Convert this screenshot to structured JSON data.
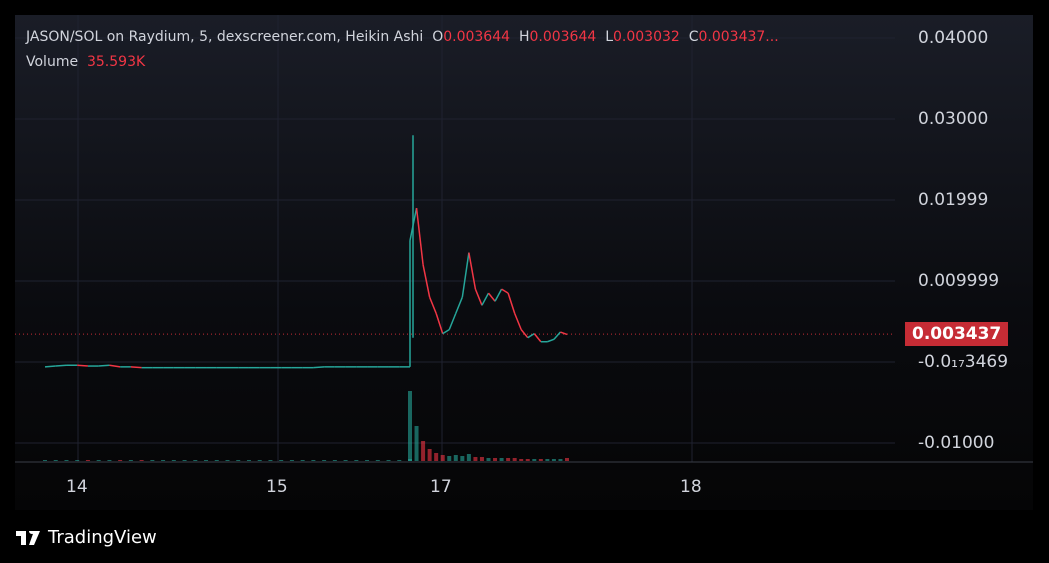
{
  "legend": {
    "title": "JASON/SOL on Raydium, 5, dexscreener.com, Heikin Ashi",
    "o_label": "O",
    "o": "0.003644",
    "h_label": "H",
    "h": "0.003644",
    "l_label": "L",
    "l": "0.003032",
    "c_label": "C",
    "c": "0.003437...",
    "volume_label": "Volume",
    "volume": "35.593K"
  },
  "price_axis": {
    "ticks": [
      "0.04000",
      "0.03000",
      "0.01999",
      "0.009999",
      "-0.01000"
    ],
    "current_price": "0.003437",
    "crosshair_label": "-0.0₁₇3469"
  },
  "time_axis": {
    "ticks": [
      "14",
      "15",
      "17",
      "18"
    ]
  },
  "brand": "TradingView",
  "colors": {
    "up": "#26a69a",
    "down": "#f23645",
    "price_badge": "#c62c35"
  },
  "chart_data": {
    "type": "candlestick",
    "chart_style": "Heikin Ashi",
    "ylim": [
      -0.0115,
      0.0415
    ],
    "values": [
      -0.0006,
      -0.0005,
      -0.0004,
      -0.0004,
      -0.0005,
      -0.0005,
      -0.0004,
      -0.0006,
      -0.0006,
      -0.0007,
      -0.0007,
      -0.0007,
      -0.0007,
      -0.0007,
      -0.0007,
      -0.0007,
      -0.0007,
      -0.0007,
      -0.0007,
      -0.0007,
      -0.0007,
      -0.0007,
      -0.0007,
      -0.0007,
      -0.0007,
      -0.0007,
      -0.0006,
      -0.0006,
      -0.0006,
      -0.0006,
      -0.0006,
      -0.0006,
      -0.0006,
      -0.0006,
      -0.0006,
      0.015,
      0.019,
      0.012,
      0.008,
      0.006,
      0.0035,
      0.004,
      0.006,
      0.008,
      0.0135,
      0.009,
      0.007,
      0.0085,
      0.0075,
      0.009,
      0.0085,
      0.006,
      0.004,
      0.003,
      0.0035,
      0.0025,
      0.0025,
      0.0028,
      0.0037,
      0.0034
    ],
    "spike_high": 0.028,
    "volume": [
      1,
      1,
      1,
      1,
      1,
      1,
      1,
      1,
      1,
      1,
      1,
      1,
      1,
      1,
      1,
      1,
      1,
      1,
      1,
      1,
      1,
      1,
      1,
      1,
      1,
      1,
      1,
      1,
      1,
      1,
      1,
      1,
      1,
      1,
      2,
      70,
      35,
      20,
      12,
      8,
      6,
      5,
      6,
      5,
      7,
      4,
      4,
      3,
      3,
      3,
      3,
      3,
      2,
      2,
      2,
      2,
      2,
      2,
      2,
      3
    ]
  }
}
